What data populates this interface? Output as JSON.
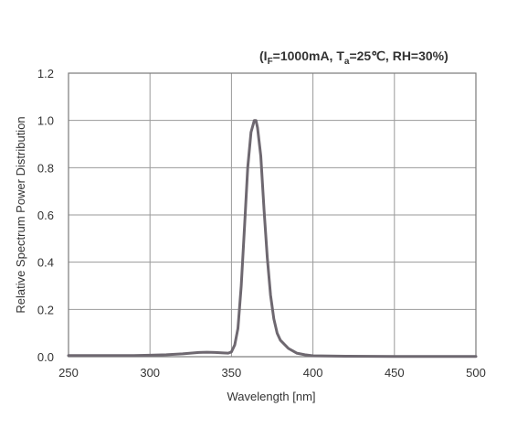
{
  "chart_data": {
    "type": "line",
    "condition": {
      "prefix": "(I",
      "if_sub": "F",
      "mid": "=1000mA, T",
      "ta_sub": "a",
      "suffix": "=25℃, RH=30%)"
    },
    "xlabel": "Wavelength [nm]",
    "ylabel": "Relative Spectrum Power Distribution",
    "xlim": [
      250,
      500
    ],
    "ylim": [
      0,
      1.2
    ],
    "xticks": [
      250,
      300,
      350,
      400,
      450,
      500
    ],
    "yticks": [
      "0.0",
      "0.2",
      "0.4",
      "0.6",
      "0.8",
      "1.0",
      "1.2"
    ],
    "grid": true,
    "series": [
      {
        "color": "#6e6870",
        "x": [
          250,
          270,
          290,
          300,
          310,
          320,
          325,
          330,
          335,
          340,
          345,
          348,
          350,
          352,
          354,
          356,
          358,
          360,
          362,
          364,
          365,
          366,
          368,
          370,
          372,
          374,
          376,
          378,
          380,
          385,
          390,
          395,
          400,
          420,
          450,
          500
        ],
        "y": [
          0.005,
          0.005,
          0.005,
          0.006,
          0.008,
          0.012,
          0.015,
          0.018,
          0.019,
          0.018,
          0.016,
          0.015,
          0.02,
          0.05,
          0.12,
          0.3,
          0.55,
          0.8,
          0.95,
          1.0,
          1.0,
          0.97,
          0.85,
          0.62,
          0.42,
          0.26,
          0.16,
          0.1,
          0.07,
          0.035,
          0.015,
          0.008,
          0.004,
          0.002,
          0.001,
          0.001
        ]
      }
    ]
  }
}
